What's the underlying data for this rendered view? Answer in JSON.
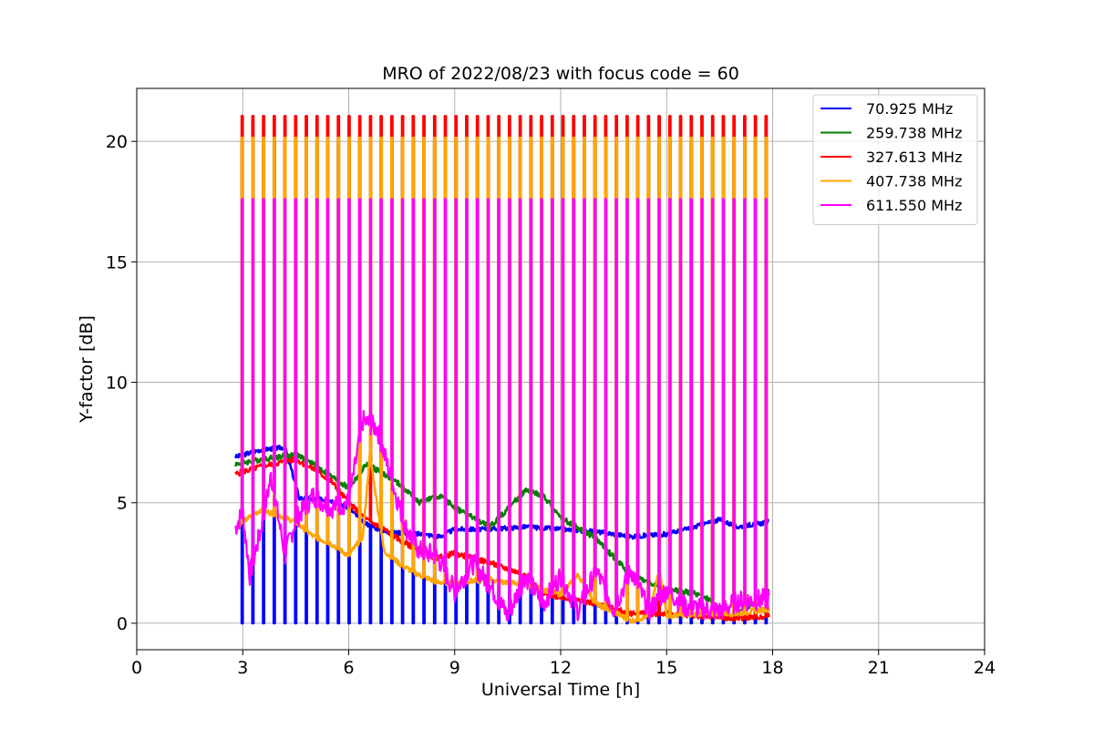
{
  "chart_data": {
    "type": "line",
    "title": "MRO of 2022/08/23 with focus code = 60",
    "xlabel": "Universal Time [h]",
    "ylabel": "Y-factor [dB]",
    "xlim": [
      0,
      24
    ],
    "ylim": [
      -1.1,
      22.2
    ],
    "x_ticks": [
      0,
      3,
      6,
      9,
      12,
      15,
      18,
      21,
      24
    ],
    "y_ticks": [
      0,
      5,
      10,
      15,
      20
    ],
    "grid": true,
    "legend_position": "top-right",
    "spike_times": {
      "start": 2.97,
      "end": 17.8,
      "count": 50
    },
    "series": [
      {
        "name": " 70.925 MHz",
        "color": "#0000ff",
        "spike_peak": 0.0,
        "spike_direction": "down",
        "baseline": [
          [
            2.8,
            6.9
          ],
          [
            3.5,
            7.2
          ],
          [
            4.2,
            7.3
          ],
          [
            4.6,
            5.2
          ],
          [
            5.5,
            5.1
          ],
          [
            6.0,
            4.8
          ],
          [
            6.4,
            4.2
          ],
          [
            7.0,
            3.8
          ],
          [
            8.0,
            3.7
          ],
          [
            8.6,
            3.6
          ],
          [
            9.0,
            3.9
          ],
          [
            10.0,
            3.9
          ],
          [
            11.0,
            4.0
          ],
          [
            12.0,
            3.9
          ],
          [
            13.0,
            3.8
          ],
          [
            14.0,
            3.6
          ],
          [
            15.0,
            3.7
          ],
          [
            15.8,
            4.0
          ],
          [
            16.5,
            4.3
          ],
          [
            17.0,
            4.0
          ],
          [
            17.9,
            4.2
          ]
        ]
      },
      {
        "name": "259.738 MHz",
        "color": "#008000",
        "spike_peak": 20.0,
        "spike_direction": "up",
        "baseline": [
          [
            2.8,
            6.6
          ],
          [
            3.5,
            6.8
          ],
          [
            4.5,
            7.0
          ],
          [
            5.0,
            6.6
          ],
          [
            5.5,
            6.1
          ],
          [
            6.0,
            5.6
          ],
          [
            6.5,
            6.6
          ],
          [
            7.0,
            6.2
          ],
          [
            7.5,
            5.7
          ],
          [
            8.0,
            5.0
          ],
          [
            8.6,
            5.3
          ],
          [
            9.0,
            4.8
          ],
          [
            10.0,
            4.0
          ],
          [
            11.0,
            5.5
          ],
          [
            11.5,
            5.3
          ],
          [
            12.0,
            4.4
          ],
          [
            13.0,
            3.5
          ],
          [
            14.0,
            2.0
          ],
          [
            15.0,
            1.4
          ],
          [
            16.0,
            1.2
          ],
          [
            16.8,
            0.2
          ],
          [
            17.9,
            1.3
          ]
        ]
      },
      {
        "name": "327.613 MHz",
        "color": "#ff0000",
        "spike_peak": 21.05,
        "spike_direction": "up",
        "baseline": [
          [
            2.8,
            6.2
          ],
          [
            3.5,
            6.5
          ],
          [
            4.5,
            6.8
          ],
          [
            5.0,
            6.4
          ],
          [
            5.5,
            5.9
          ],
          [
            6.0,
            5.0
          ],
          [
            6.5,
            4.3
          ],
          [
            7.0,
            3.9
          ],
          [
            7.5,
            3.4
          ],
          [
            8.0,
            3.0
          ],
          [
            8.5,
            2.7
          ],
          [
            9.0,
            2.9
          ],
          [
            10.0,
            2.5
          ],
          [
            11.0,
            2.0
          ],
          [
            11.5,
            1.2
          ],
          [
            12.0,
            1.1
          ],
          [
            13.0,
            0.8
          ],
          [
            14.0,
            0.4
          ],
          [
            15.0,
            0.4
          ],
          [
            16.0,
            0.3
          ],
          [
            17.0,
            0.2
          ],
          [
            17.9,
            0.3
          ]
        ]
      },
      {
        "name": "407.738 MHz",
        "color": "#ffa500",
        "spike_peak": 20.15,
        "spike_direction": "up",
        "baseline": [
          [
            2.8,
            4.0
          ],
          [
            3.5,
            4.7
          ],
          [
            4.0,
            4.5
          ],
          [
            4.5,
            4.2
          ],
          [
            5.0,
            3.6
          ],
          [
            5.5,
            3.3
          ],
          [
            6.0,
            2.8
          ],
          [
            6.4,
            3.6
          ],
          [
            6.6,
            7.0
          ],
          [
            7.0,
            3.0
          ],
          [
            7.5,
            2.4
          ],
          [
            8.0,
            2.0
          ],
          [
            8.5,
            1.7
          ],
          [
            9.0,
            1.7
          ],
          [
            10.0,
            1.8
          ],
          [
            11.0,
            1.6
          ],
          [
            12.0,
            1.2
          ],
          [
            12.5,
            2.0
          ],
          [
            13.0,
            0.8
          ],
          [
            14.0,
            0.1
          ],
          [
            14.5,
            0.3
          ],
          [
            14.8,
            2.3
          ],
          [
            15.0,
            0.3
          ],
          [
            16.0,
            0.4
          ],
          [
            17.0,
            0.4
          ],
          [
            17.9,
            0.6
          ]
        ]
      },
      {
        "name": "611.550 MHz",
        "color": "#ff00ff",
        "spike_peak": 17.6,
        "spike_direction": "up",
        "baseline": [
          [
            2.8,
            4.0
          ],
          [
            3.0,
            4.6
          ],
          [
            3.2,
            2.0
          ],
          [
            3.5,
            3.8
          ],
          [
            3.8,
            6.1
          ],
          [
            4.2,
            2.8
          ],
          [
            4.5,
            4.3
          ],
          [
            5.0,
            5.3
          ],
          [
            5.5,
            4.8
          ],
          [
            6.0,
            5.0
          ],
          [
            6.4,
            8.4
          ],
          [
            6.8,
            8.1
          ],
          [
            7.2,
            6.0
          ],
          [
            7.6,
            4.0
          ],
          [
            8.0,
            3.0
          ],
          [
            8.5,
            2.8
          ],
          [
            9.0,
            1.3
          ],
          [
            9.5,
            2.5
          ],
          [
            10.0,
            1.6
          ],
          [
            10.5,
            0.3
          ],
          [
            11.0,
            2.0
          ],
          [
            11.5,
            0.8
          ],
          [
            12.0,
            2.0
          ],
          [
            12.5,
            0.5
          ],
          [
            13.0,
            2.2
          ],
          [
            13.5,
            0.6
          ],
          [
            14.0,
            2.2
          ],
          [
            14.5,
            0.5
          ],
          [
            15.0,
            1.4
          ],
          [
            15.5,
            0.7
          ],
          [
            16.0,
            0.6
          ],
          [
            16.5,
            0.5
          ],
          [
            17.0,
            0.9
          ],
          [
            17.9,
            1.0
          ]
        ]
      }
    ]
  }
}
